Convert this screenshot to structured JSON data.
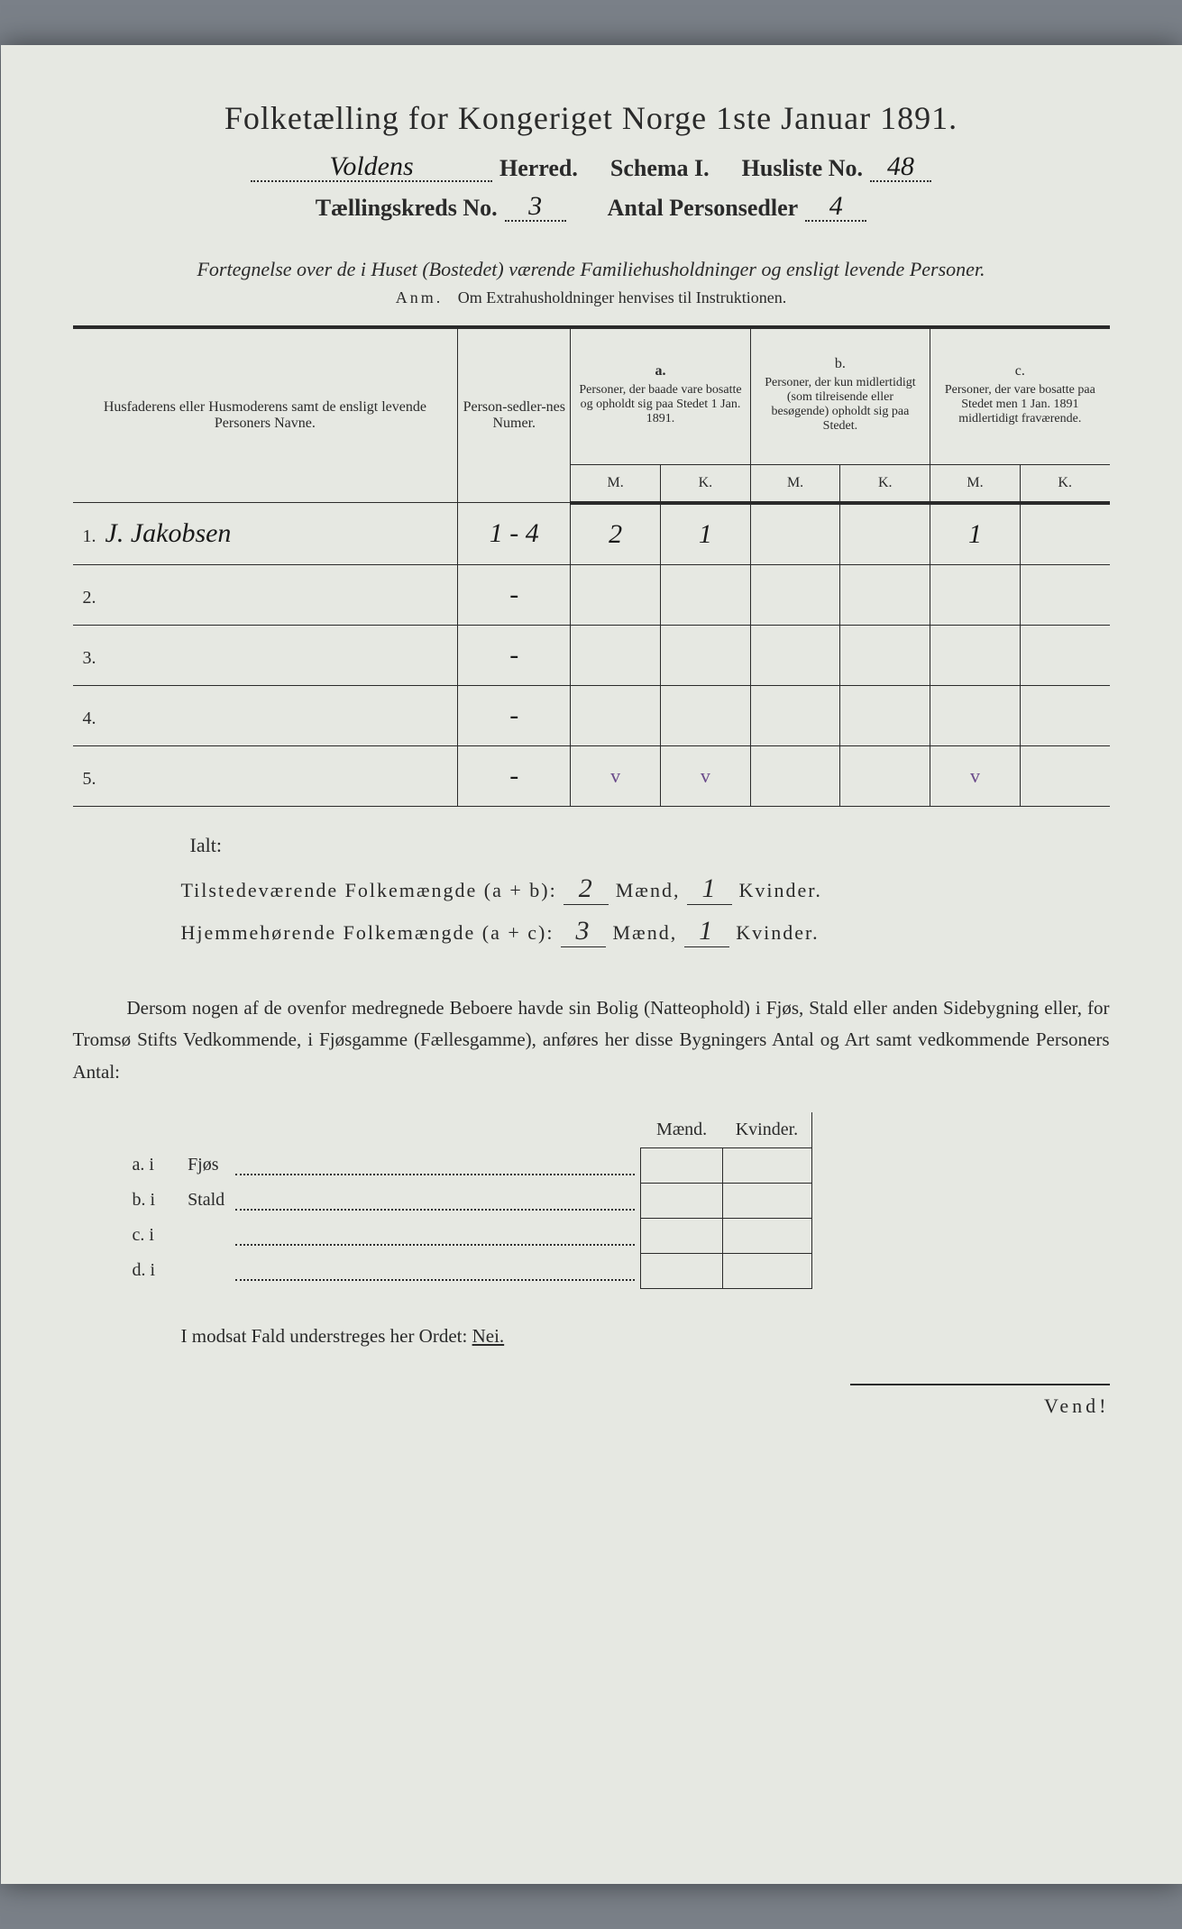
{
  "title": "Folketælling for Kongeriget Norge 1ste Januar 1891.",
  "header": {
    "herred_value": "Voldens",
    "herred_label": "Herred.",
    "schema_label": "Schema I.",
    "husliste_label": "Husliste No.",
    "husliste_value": "48",
    "kreds_label": "Tællingskreds No.",
    "kreds_value": "3",
    "antal_label": "Antal Personsedler",
    "antal_value": "4"
  },
  "subtitle": "Fortegnelse over de i Huset (Bostedet) værende Familiehusholdninger og ensligt levende Personer.",
  "anm_label": "Anm.",
  "anm_text": "Om Extrahusholdninger henvises til Instruktionen.",
  "table": {
    "col_names": "Husfaderens eller Husmoderens samt de ensligt levende Personers Navne.",
    "col_num": "Person-sedler-nes Numer.",
    "col_a_label": "a.",
    "col_a": "Personer, der baade vare bosatte og opholdt sig paa Stedet 1 Jan. 1891.",
    "col_b_label": "b.",
    "col_b": "Personer, der kun midlertidigt (som tilreisende eller besøgende) opholdt sig paa Stedet.",
    "col_c_label": "c.",
    "col_c": "Personer, der vare bosatte paa Stedet men 1 Jan. 1891 midlertidigt fraværende.",
    "m": "M.",
    "k": "K.",
    "rows": [
      {
        "n": "1.",
        "name": "J. Jakobsen",
        "num": "1 - 4",
        "aM": "2",
        "aK": "1",
        "bM": "",
        "bK": "",
        "cM": "1",
        "cK": ""
      },
      {
        "n": "2.",
        "name": "",
        "num": "-",
        "aM": "",
        "aK": "",
        "bM": "",
        "bK": "",
        "cM": "",
        "cK": ""
      },
      {
        "n": "3.",
        "name": "",
        "num": "-",
        "aM": "",
        "aK": "",
        "bM": "",
        "bK": "",
        "cM": "",
        "cK": ""
      },
      {
        "n": "4.",
        "name": "",
        "num": "-",
        "aM": "",
        "aK": "",
        "bM": "",
        "bK": "",
        "cM": "",
        "cK": ""
      },
      {
        "n": "5.",
        "name": "",
        "num": "-",
        "aM": "",
        "aK": "",
        "bM": "",
        "bK": "",
        "cM": "",
        "cK": ""
      }
    ],
    "ticks": {
      "aM": "v",
      "aK": "v",
      "cM": "v"
    }
  },
  "totals": {
    "ialt": "Ialt:",
    "row1_label": "Tilstedeværende Folkemængde (a + b):",
    "row1_m": "2",
    "row1_k": "1",
    "row2_label": "Hjemmehørende Folkemængde (a + c):",
    "row2_m": "3",
    "row2_k": "1",
    "maend": "Mænd,",
    "kvinder": "Kvinder."
  },
  "dersom": "Dersom nogen af de ovenfor medregnede Beboere havde sin Bolig (Natteophold) i Fjøs, Stald eller anden Sidebygning eller, for Tromsø Stifts Vedkommende, i Fjøsgamme (Fællesgamme), anføres her disse Bygningers Antal og Art samt vedkommende Personers Antal:",
  "subtable": {
    "maend": "Mænd.",
    "kvinder": "Kvinder.",
    "rows": [
      {
        "lbl": "a. i",
        "txt": "Fjøs"
      },
      {
        "lbl": "b. i",
        "txt": "Stald"
      },
      {
        "lbl": "c. i",
        "txt": ""
      },
      {
        "lbl": "d. i",
        "txt": ""
      }
    ]
  },
  "modsat": "I modsat Fald understreges her Ordet:",
  "nei": "Nei.",
  "vend": "Vend!"
}
